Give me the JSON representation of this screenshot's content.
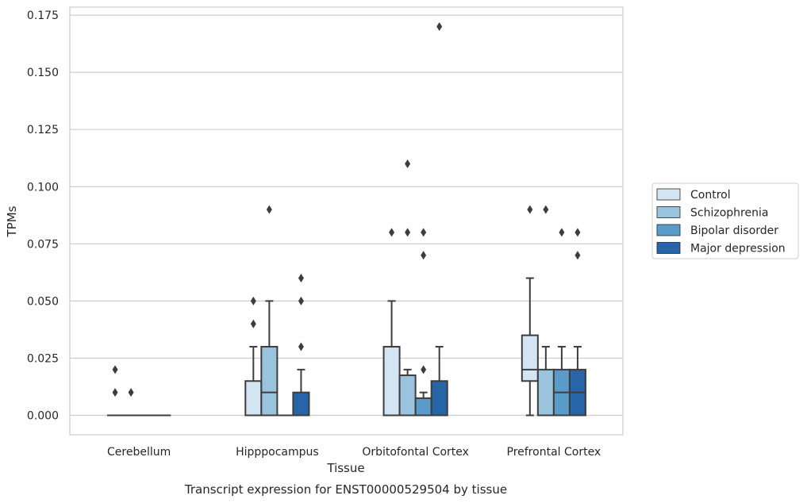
{
  "chart_data": {
    "type": "box",
    "title": "Transcript expression for ENST00000529504 by tissue",
    "xlabel": "Tissue",
    "ylabel": "TPMs",
    "ylim": [
      -0.0085,
      0.1785
    ],
    "yticks": [
      "0.000",
      "0.025",
      "0.050",
      "0.075",
      "0.100",
      "0.125",
      "0.150",
      "0.175"
    ],
    "ytick_values": [
      0,
      0.025,
      0.05,
      0.075,
      0.1,
      0.125,
      0.15,
      0.175
    ],
    "grid": true,
    "legend_position": "right",
    "categories": [
      "Cerebellum",
      "Hipppocampus",
      "Orbitofontal Cortex",
      "Prefrontal Cortex"
    ],
    "series": [
      {
        "name": "Control",
        "color": "#d3e4f3",
        "boxes": [
          {
            "min": 0,
            "q1": 0,
            "median": 0,
            "q3": 0,
            "max": 0,
            "outliers": [
              0.02,
              0.01
            ]
          },
          {
            "min": 0,
            "q1": 0,
            "median": 0,
            "q3": 0.015,
            "max": 0.03,
            "outliers": [
              0.04,
              0.05
            ]
          },
          {
            "min": 0,
            "q1": 0,
            "median": 0,
            "q3": 0.03,
            "max": 0.05,
            "outliers": [
              0.08
            ]
          },
          {
            "min": 0,
            "q1": 0.015,
            "median": 0.02,
            "q3": 0.035,
            "max": 0.06,
            "outliers": [
              0.09
            ]
          }
        ]
      },
      {
        "name": "Schizophrenia",
        "color": "#9ac4de",
        "boxes": [
          {
            "min": 0,
            "q1": 0,
            "median": 0,
            "q3": 0,
            "max": 0,
            "outliers": [
              0.01
            ]
          },
          {
            "min": 0,
            "q1": 0,
            "median": 0.01,
            "q3": 0.03,
            "max": 0.05,
            "outliers": [
              0.09
            ]
          },
          {
            "min": 0,
            "q1": 0,
            "median": 0,
            "q3": 0.0175,
            "max": 0.02,
            "outliers": [
              0.11,
              0.08
            ]
          },
          {
            "min": 0,
            "q1": 0,
            "median": 0,
            "q3": 0.02,
            "max": 0.03,
            "outliers": [
              0.09
            ]
          }
        ]
      },
      {
        "name": "Bipolar disorder",
        "color": "#5b9bc9",
        "boxes": [
          {
            "min": 0,
            "q1": 0,
            "median": 0,
            "q3": 0,
            "max": 0,
            "outliers": []
          },
          {
            "min": 0,
            "q1": 0,
            "median": 0,
            "q3": 0,
            "max": 0,
            "outliers": []
          },
          {
            "min": 0,
            "q1": 0,
            "median": 0,
            "q3": 0.0075,
            "max": 0.01,
            "outliers": [
              0.02,
              0.07,
              0.08
            ]
          },
          {
            "min": 0,
            "q1": 0,
            "median": 0.01,
            "q3": 0.02,
            "max": 0.03,
            "outliers": [
              0.08
            ]
          }
        ]
      },
      {
        "name": "Major depression",
        "color": "#2565a8",
        "boxes": [
          {
            "min": 0,
            "q1": 0,
            "median": 0,
            "q3": 0,
            "max": 0,
            "outliers": []
          },
          {
            "min": 0,
            "q1": 0,
            "median": 0,
            "q3": 0.01,
            "max": 0.02,
            "outliers": [
              0.03,
              0.05,
              0.06
            ]
          },
          {
            "min": 0,
            "q1": 0,
            "median": 0,
            "q3": 0.015,
            "max": 0.03,
            "outliers": [
              0.17
            ]
          },
          {
            "min": 0,
            "q1": 0,
            "median": 0.01,
            "q3": 0.02,
            "max": 0.03,
            "outliers": [
              0.07,
              0.08
            ]
          }
        ]
      }
    ]
  }
}
